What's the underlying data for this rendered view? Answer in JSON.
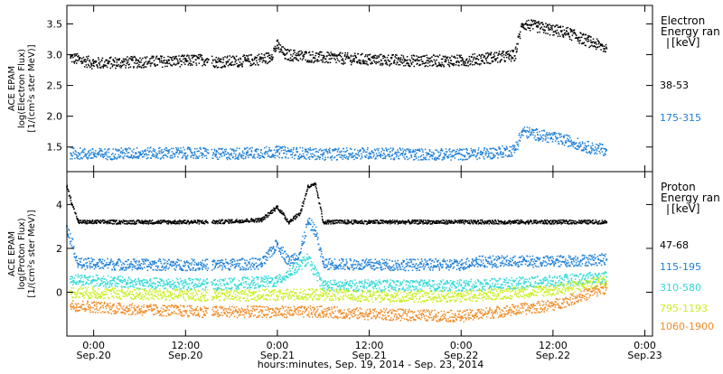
{
  "chart_data": {
    "type": "scatter",
    "xlabel": "hours:minutes, Sep. 19, 2014 - Sep. 23, 2014",
    "x_range": [
      "2014-09-19T20:30",
      "2014-09-23T01:00"
    ],
    "x_ticks": [
      {
        "t": "2014-09-20T00:00",
        "time": "0:00",
        "date": "Sep.20"
      },
      {
        "t": "2014-09-20T12:00",
        "time": "12:00",
        "date": "Sep.20"
      },
      {
        "t": "2014-09-21T00:00",
        "time": "0:00",
        "date": "Sep.21"
      },
      {
        "t": "2014-09-21T12:00",
        "time": "12:00",
        "date": "Sep.21"
      },
      {
        "t": "2014-09-22T00:00",
        "time": "0:00",
        "date": "Sep.22"
      },
      {
        "t": "2014-09-22T12:00",
        "time": "12:00",
        "date": "Sep.22"
      },
      {
        "t": "2014-09-23T00:00",
        "time": "0:00",
        "date": "Sep.23"
      }
    ],
    "panels": [
      {
        "id": "electron",
        "ylabel": [
          "ACE EPAM",
          "log(Electron Flux)",
          "[1/(cm²s ster MeV)]"
        ],
        "ylim": [
          1.1,
          3.8
        ],
        "yticks": [
          {
            "v": 1.5,
            "label": "1.5"
          },
          {
            "v": 2.0,
            "label": "2.0"
          },
          {
            "v": 2.5,
            "label": "2.5"
          },
          {
            "v": 3.0,
            "label": "3.0"
          },
          {
            "v": 3.5,
            "label": "3.5"
          }
        ],
        "legend_title": [
          "Electron",
          "Energy ran",
          "[keV]"
        ],
        "series": [
          {
            "name": "38-53",
            "color": "#000000",
            "points": [
              [
                "2014-09-19T21:00",
                2.95
              ],
              [
                "2014-09-20T00:00",
                2.86
              ],
              [
                "2014-09-20T06:00",
                2.88
              ],
              [
                "2014-09-20T12:00",
                2.9
              ],
              [
                "2014-09-20T15:00",
                2.92
              ],
              [
                "2014-09-20T16:00",
                2.88
              ],
              [
                "2014-09-20T20:00",
                2.9
              ],
              [
                "2014-09-20T23:00",
                2.95
              ],
              [
                "2014-09-21T00:00",
                3.15
              ],
              [
                "2014-09-21T01:00",
                3.0
              ],
              [
                "2014-09-21T06:00",
                2.95
              ],
              [
                "2014-09-21T12:00",
                2.92
              ],
              [
                "2014-09-21T18:00",
                2.9
              ],
              [
                "2014-09-22T00:00",
                2.9
              ],
              [
                "2014-09-22T04:00",
                2.95
              ],
              [
                "2014-09-22T07:00",
                2.98
              ],
              [
                "2014-09-22T08:00",
                3.5
              ],
              [
                "2014-09-22T10:00",
                3.45
              ],
              [
                "2014-09-22T14:00",
                3.35
              ],
              [
                "2014-09-22T17:00",
                3.2
              ],
              [
                "2014-09-22T19:00",
                3.1
              ]
            ]
          },
          {
            "name": "175-315",
            "color": "#1e7fd6",
            "points": [
              [
                "2014-09-19T21:00",
                1.4
              ],
              [
                "2014-09-20T00:00",
                1.38
              ],
              [
                "2014-09-20T06:00",
                1.4
              ],
              [
                "2014-09-20T12:00",
                1.4
              ],
              [
                "2014-09-20T15:00",
                1.4
              ],
              [
                "2014-09-20T16:00",
                1.38
              ],
              [
                "2014-09-20T20:00",
                1.4
              ],
              [
                "2014-09-21T00:00",
                1.42
              ],
              [
                "2014-09-21T06:00",
                1.38
              ],
              [
                "2014-09-21T12:00",
                1.4
              ],
              [
                "2014-09-21T18:00",
                1.38
              ],
              [
                "2014-09-22T00:00",
                1.38
              ],
              [
                "2014-09-22T04:00",
                1.4
              ],
              [
                "2014-09-22T07:00",
                1.45
              ],
              [
                "2014-09-22T08:00",
                1.75
              ],
              [
                "2014-09-22T10:00",
                1.7
              ],
              [
                "2014-09-22T14:00",
                1.6
              ],
              [
                "2014-09-22T17:00",
                1.48
              ],
              [
                "2014-09-22T19:00",
                1.45
              ]
            ]
          }
        ]
      },
      {
        "id": "proton",
        "ylabel": [
          "ACE EPAM",
          "log(Proton Flux)",
          "[1/(cm²s ster MeV)]"
        ],
        "ylim": [
          -2.0,
          5.5
        ],
        "yticks": [
          {
            "v": 0,
            "label": "0"
          },
          {
            "v": 2,
            "label": "2"
          },
          {
            "v": 4,
            "label": "4"
          }
        ],
        "legend_title": [
          "Proton",
          "Energy ran",
          "[keV]"
        ],
        "series": [
          {
            "name": "47-68",
            "color": "#000000",
            "points": [
              [
                "2014-09-19T20:30",
                4.8
              ],
              [
                "2014-09-19T22:00",
                3.2
              ],
              [
                "2014-09-20T06:00",
                3.2
              ],
              [
                "2014-09-20T16:00",
                3.2
              ],
              [
                "2014-09-20T22:00",
                3.3
              ],
              [
                "2014-09-21T00:00",
                3.9
              ],
              [
                "2014-09-21T01:30",
                3.2
              ],
              [
                "2014-09-21T03:00",
                3.6
              ],
              [
                "2014-09-21T04:00",
                4.8
              ],
              [
                "2014-09-21T05:00",
                4.9
              ],
              [
                "2014-09-21T06:00",
                3.2
              ],
              [
                "2014-09-21T12:00",
                3.2
              ],
              [
                "2014-09-22T00:00",
                3.2
              ],
              [
                "2014-09-22T12:00",
                3.2
              ],
              [
                "2014-09-22T19:00",
                3.2
              ]
            ]
          },
          {
            "name": "115-195",
            "color": "#1e7fd6",
            "points": [
              [
                "2014-09-19T20:30",
                3.0
              ],
              [
                "2014-09-19T22:00",
                1.3
              ],
              [
                "2014-09-20T06:00",
                1.25
              ],
              [
                "2014-09-20T16:00",
                1.25
              ],
              [
                "2014-09-20T22:00",
                1.3
              ],
              [
                "2014-09-21T00:00",
                2.2
              ],
              [
                "2014-09-21T01:30",
                1.4
              ],
              [
                "2014-09-21T03:00",
                1.8
              ],
              [
                "2014-09-21T04:00",
                3.2
              ],
              [
                "2014-09-21T05:00",
                2.8
              ],
              [
                "2014-09-21T06:00",
                1.3
              ],
              [
                "2014-09-21T12:00",
                1.25
              ],
              [
                "2014-09-22T00:00",
                1.25
              ],
              [
                "2014-09-22T02:00",
                1.4
              ],
              [
                "2014-09-22T12:00",
                1.4
              ],
              [
                "2014-09-22T19:00",
                1.5
              ]
            ]
          },
          {
            "name": "310-580",
            "color": "#30d8d8",
            "points": [
              [
                "2014-09-19T21:00",
                0.6
              ],
              [
                "2014-09-20T06:00",
                0.4
              ],
              [
                "2014-09-20T16:00",
                0.35
              ],
              [
                "2014-09-21T00:00",
                0.5
              ],
              [
                "2014-09-21T04:00",
                1.5
              ],
              [
                "2014-09-21T06:00",
                0.3
              ],
              [
                "2014-09-21T12:00",
                0.3
              ],
              [
                "2014-09-22T00:00",
                0.3
              ],
              [
                "2014-09-22T12:00",
                0.5
              ],
              [
                "2014-09-22T19:00",
                0.7
              ]
            ]
          },
          {
            "name": "795-1193",
            "color": "#c8f020",
            "points": [
              [
                "2014-09-19T21:00",
                0.0
              ],
              [
                "2014-09-20T06:00",
                -0.1
              ],
              [
                "2014-09-20T16:00",
                -0.15
              ],
              [
                "2014-09-21T06:00",
                -0.1
              ],
              [
                "2014-09-21T12:00",
                -0.2
              ],
              [
                "2014-09-22T00:00",
                -0.2
              ],
              [
                "2014-09-22T12:00",
                0.1
              ],
              [
                "2014-09-22T19:00",
                0.5
              ]
            ]
          },
          {
            "name": "1060-1900",
            "color": "#f08c28",
            "points": [
              [
                "2014-09-19T21:00",
                -0.6
              ],
              [
                "2014-09-20T06:00",
                -0.8
              ],
              [
                "2014-09-20T16:00",
                -0.9
              ],
              [
                "2014-09-21T06:00",
                -0.9
              ],
              [
                "2014-09-21T12:00",
                -1.0
              ],
              [
                "2014-09-22T00:00",
                -1.1
              ],
              [
                "2014-09-22T12:00",
                -0.6
              ],
              [
                "2014-09-22T19:00",
                0.2
              ]
            ]
          }
        ]
      }
    ]
  }
}
